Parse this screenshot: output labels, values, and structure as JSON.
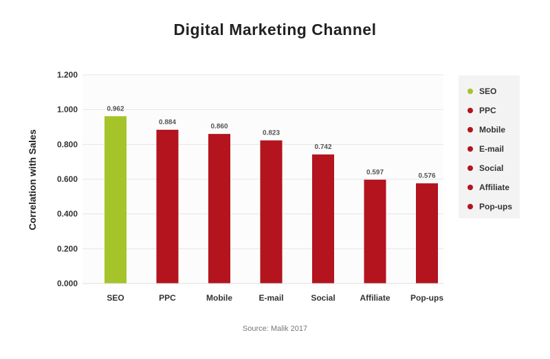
{
  "chart_data": {
    "type": "bar",
    "title": "Digital Marketing Channel",
    "xlabel": "",
    "ylabel": "Correlation with Sales",
    "source": "Source: Malik 2017",
    "categories": [
      "SEO",
      "PPC",
      "Mobile",
      "E-mail",
      "Social",
      "Affiliate",
      "Pop-ups"
    ],
    "values": [
      0.962,
      0.884,
      0.86,
      0.823,
      0.742,
      0.597,
      0.576
    ],
    "value_labels": [
      "0.962",
      "0.884",
      "0.860",
      "0.823",
      "0.742",
      "0.597",
      "0.576"
    ],
    "bar_colors": [
      "#a4c42a",
      "#b3141e",
      "#b3141e",
      "#b3141e",
      "#b3141e",
      "#b3141e",
      "#b3141e"
    ],
    "ylim": [
      0,
      1.2
    ],
    "yticks": [
      0,
      0.2,
      0.4,
      0.6,
      0.8,
      1.0,
      1.2
    ],
    "ytick_labels": [
      "0.000",
      "0.200",
      "0.400",
      "0.600",
      "0.800",
      "1.000",
      "1.200"
    ],
    "grid": true,
    "legend_position": "right"
  }
}
